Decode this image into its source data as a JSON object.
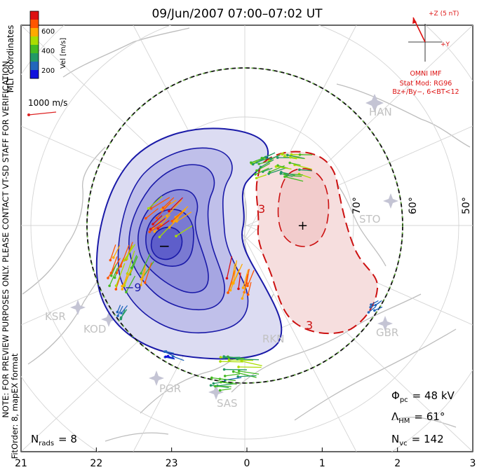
{
  "title": "09/Jun/2007 07:00–07:02 UT",
  "colorbar": {
    "label": "Vel [m/s]",
    "coord_label": "MLT coordinates",
    "ticks": [
      "600",
      "400",
      "200"
    ],
    "colors": [
      "#dd1111",
      "#ff5500",
      "#ffaa00",
      "#aadd00",
      "#44bb22",
      "#229966",
      "#2266bb",
      "#1111dd"
    ]
  },
  "scale_vector": {
    "label": "1000 m/s",
    "color": "#dd2222"
  },
  "note": {
    "line1": "NOTE: FOR PREVIEW PURPOSES ONLY. PLEASE CONTACT VT-SD STAFF FOR VERIFICATION.",
    "line2": "FitOrder: 8, mapEX format"
  },
  "imf": {
    "z_label": "+Z (5 nT)",
    "y_label": "+Y",
    "source": "OMNI IMF",
    "model": "Stat Mod: RG96",
    "condition": "Bz+/By−, 6<BT<12",
    "color": "#dd1111"
  },
  "stations": [
    "HAN",
    "STO",
    "GBR",
    "RKN",
    "SAS",
    "PGR",
    "KOD",
    "KSR"
  ],
  "lat_labels": [
    "70°",
    "60°",
    "50°"
  ],
  "contours": {
    "neg_color": "#1a1aa8",
    "pos_color": "#cc1111",
    "neg_fill": "#8888dd",
    "pos_fill": "#f0b8b8",
    "min_marker": "−",
    "max_marker": "+",
    "labels": [
      "−3",
      "−9",
      "3",
      "3"
    ]
  },
  "stats": {
    "phi_label": "Φ",
    "phi_sub": "pc",
    "phi_value": "= 48 kV",
    "lam_label": "Λ",
    "lam_sub": "HM",
    "lam_value": "= 61°",
    "nvc_label": "N",
    "nvc_sub": "vc",
    "nvc_value": "= 142",
    "nrads_label": "N",
    "nrads_sub": "rads",
    "nrads_value": "= 8"
  },
  "chart_data": {
    "type": "polar convection map",
    "x_axis": {
      "ticks": [
        "21",
        "22",
        "23",
        "0",
        "1",
        "2",
        "3"
      ]
    },
    "summary": {
      "phi_pc_kV": 48,
      "lambda_hm_deg": 61,
      "n_vc": 142,
      "n_rads": 8
    }
  }
}
